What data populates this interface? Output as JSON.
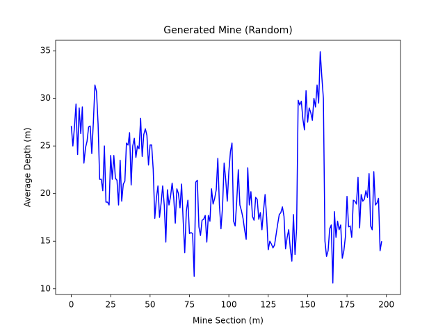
{
  "chart_data": {
    "type": "line",
    "title": "Generated Mine (Random)",
    "x_label": "Mine Section (m)",
    "y_label": "Average Depth (m)",
    "color": "#0000ff",
    "grid": false,
    "x": [
      0,
      1,
      2,
      3,
      4,
      5,
      6,
      7,
      8,
      9,
      10,
      11,
      12,
      13,
      14,
      15,
      16,
      17,
      18,
      19,
      20,
      21,
      22,
      23,
      24,
      25,
      26,
      27,
      28,
      29,
      30,
      31,
      32,
      33,
      34,
      35,
      36,
      37,
      38,
      39,
      40,
      41,
      42,
      43,
      44,
      45,
      46,
      47,
      48,
      49,
      50,
      51,
      52,
      53,
      54,
      55,
      56,
      57,
      58,
      59,
      60,
      61,
      62,
      63,
      64,
      65,
      66,
      67,
      68,
      69,
      70,
      71,
      72,
      73,
      74,
      75,
      76,
      77,
      78,
      79,
      80,
      81,
      82,
      83,
      84,
      85,
      86,
      87,
      88,
      89,
      90,
      91,
      92,
      93,
      94,
      95,
      96,
      97,
      98,
      99,
      100,
      101,
      102,
      103,
      104,
      105,
      106,
      107,
      108,
      109,
      110,
      111,
      112,
      113,
      114,
      115,
      116,
      117,
      118,
      119,
      120,
      121,
      122,
      123,
      124,
      125,
      126,
      127,
      128,
      129,
      130,
      131,
      132,
      133,
      134,
      135,
      136,
      137,
      138,
      139,
      140,
      141,
      142,
      143,
      144,
      145,
      146,
      147,
      148,
      149,
      150,
      151,
      152,
      153,
      154,
      155,
      156,
      157,
      158,
      159,
      160,
      161,
      162,
      163,
      164,
      165,
      166,
      167,
      168,
      169,
      170,
      171,
      172,
      173,
      174,
      175,
      176,
      177,
      178,
      179,
      180,
      181,
      182,
      183,
      184,
      185,
      186,
      187,
      188,
      189,
      190,
      191,
      192,
      193,
      194,
      195,
      196,
      197
    ],
    "values": [
      27.1,
      25,
      27,
      29.4,
      24.1,
      29,
      26.3,
      29.1,
      23.2,
      24.8,
      25.5,
      27,
      27.1,
      24.2,
      27.5,
      31.4,
      30.7,
      27.3,
      21.5,
      21.5,
      20.3,
      25,
      19.1,
      19.1,
      18.8,
      24,
      21.5,
      24,
      21.6,
      21.4,
      18.8,
      23.5,
      19.2,
      21,
      21.3,
      25.3,
      25.1,
      26.4,
      20.9,
      25,
      25.8,
      23.8,
      25,
      24.7,
      27.9,
      23.9,
      26.2,
      26.8,
      26.1,
      23,
      25.1,
      25.1,
      22.5,
      17.4,
      19.5,
      20.8,
      17.5,
      19,
      20.8,
      18.8,
      14.9,
      20.4,
      18.8,
      19.7,
      21.1,
      19.6,
      16.9,
      20.5,
      20,
      18.5,
      21,
      17.2,
      13.8,
      18.1,
      19.3,
      15.8,
      15.9,
      15.8,
      11.3,
      21.2,
      21.4,
      16.5,
      15.6,
      17.2,
      17.3,
      17.7,
      14.9,
      17.7,
      17.1,
      20.5,
      18.9,
      19.5,
      20.4,
      23.7,
      18.8,
      16.3,
      18.6,
      23.2,
      21.5,
      19.2,
      22.3,
      24.4,
      25.3,
      17.1,
      16.6,
      19.2,
      22.5,
      18.8,
      18.2,
      17.4,
      16.2,
      15.2,
      22.7,
      18.8,
      20.2,
      17.6,
      17.2,
      19.6,
      19.4,
      17.3,
      18,
      16.2,
      18.2,
      19.9,
      17.5,
      14.1,
      15,
      14.7,
      14.3,
      14.6,
      15.7,
      16.8,
      17.8,
      18,
      18.6,
      17.6,
      14.2,
      15.4,
      16.2,
      14.2,
      12.9,
      17.8,
      13.6,
      16.3,
      29.8,
      29.3,
      29.7,
      27.8,
      26.7,
      30.8,
      27.5,
      29,
      28.5,
      27.7,
      30,
      29.1,
      31.4,
      29.5,
      34.9,
      32.3,
      30,
      15,
      13.4,
      14,
      16.3,
      16.7,
      10.6,
      18.1,
      15.4,
      17.1,
      16.2,
      16.7,
      13.2,
      14,
      15.5,
      19.7,
      16.5,
      16.6,
      15.4,
      19.3,
      19.2,
      18.9,
      21.7,
      16.4,
      19.9,
      19.2,
      19.4,
      20.3,
      19.6,
      22.1,
      16.6,
      16.2,
      22.3,
      18.8,
      19,
      19.5,
      14,
      15
    ],
    "xlim": [
      -9.95,
      208.95
    ],
    "ylim": [
      9.4,
      36.1
    ],
    "xticks": [
      0,
      25,
      50,
      75,
      100,
      125,
      150,
      175,
      200
    ],
    "yticks": [
      10,
      15,
      20,
      25,
      30,
      35
    ]
  }
}
